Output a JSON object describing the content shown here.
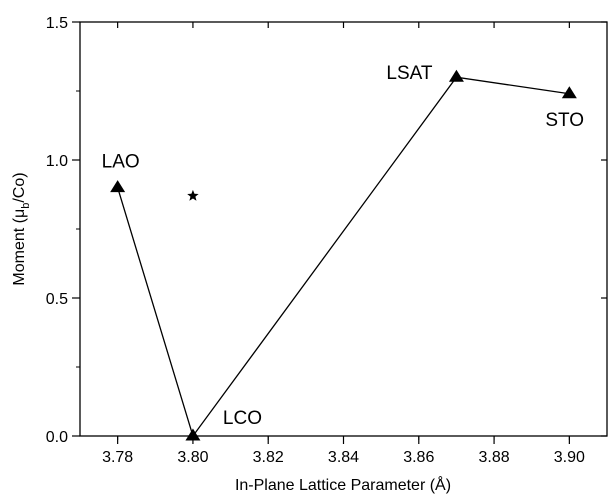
{
  "chart_data": {
    "type": "scatter",
    "xlabel": "In-Plane Lattice Parameter (Å)",
    "ylabel": {
      "prefix": "Moment (μ",
      "subscript": "b",
      "suffix": "/Co)"
    },
    "xlim": [
      3.77,
      3.91
    ],
    "ylim": [
      0.0,
      1.5
    ],
    "xticks": [
      "3.78",
      "3.80",
      "3.82",
      "3.84",
      "3.86",
      "3.88",
      "3.90"
    ],
    "yticks": [
      "0.0",
      "0.5",
      "1.0",
      "1.5"
    ],
    "grid": false,
    "series": [
      {
        "marker": "triangle",
        "connected": true,
        "points": [
          {
            "label": "LAO",
            "x": 3.78,
            "y": 0.9
          },
          {
            "label": "LCO",
            "x": 3.8,
            "y": 0.0
          },
          {
            "label": "LSAT",
            "x": 3.87,
            "y": 1.3
          },
          {
            "label": "STO",
            "x": 3.9,
            "y": 1.24
          }
        ]
      },
      {
        "marker": "star",
        "connected": false,
        "points": [
          {
            "label": "",
            "x": 3.8,
            "y": 0.87
          }
        ]
      }
    ]
  }
}
